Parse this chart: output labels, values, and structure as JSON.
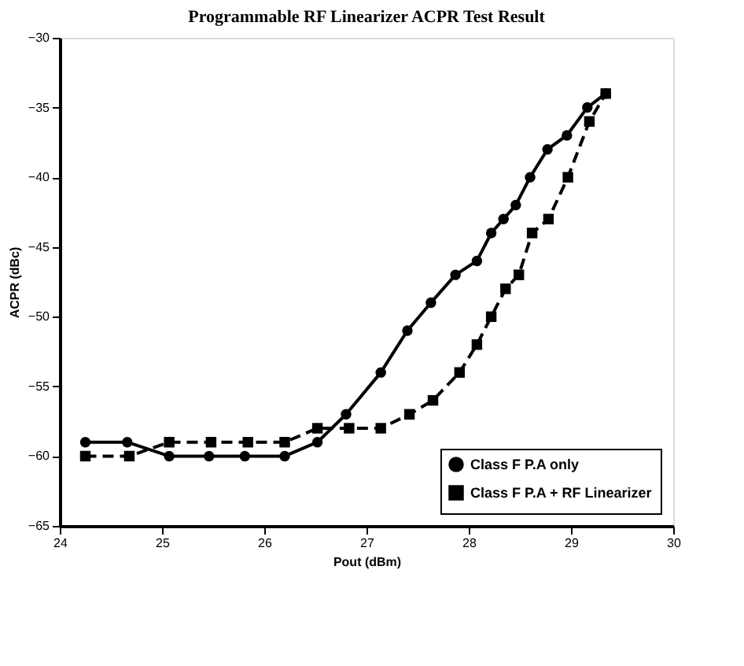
{
  "chart_data": {
    "type": "line",
    "title": "Programmable RF Linearizer ACPR Test Result",
    "xlabel": "Pout (dBm)",
    "ylabel": "ACPR (dBc)",
    "xlim": [
      24,
      30
    ],
    "xticks": [
      24,
      25,
      26,
      27,
      28,
      29,
      30
    ],
    "ylim": [
      -65,
      -30
    ],
    "yticks": [
      -65,
      -60,
      -55,
      -50,
      -45,
      -40,
      -35,
      -30
    ],
    "grid": false,
    "legend": "bottom right",
    "series": [
      {
        "name": "Class F P.A only",
        "color": "#000000",
        "marker": "circle",
        "line_style": "solid",
        "x": [
          24.25,
          24.66,
          25.07,
          25.46,
          25.81,
          26.2,
          26.52,
          26.8,
          27.14,
          27.4,
          27.63,
          27.87,
          28.08,
          28.22,
          28.34,
          28.46,
          28.6,
          28.77,
          28.96,
          29.16,
          29.34
        ],
        "values": [
          -59,
          -59,
          -60,
          -60,
          -60,
          -60,
          -59,
          -57,
          -54,
          -51,
          -49,
          -47,
          -46,
          -44,
          -43,
          -42,
          -40,
          -38,
          -37,
          -35,
          -34
        ]
      },
      {
        "name": "Class F P.A + RF Linearizer",
        "color": "#000000",
        "marker": "square",
        "line_style": "dashed",
        "x": [
          24.25,
          24.68,
          25.07,
          25.48,
          25.84,
          26.2,
          26.52,
          26.83,
          27.14,
          27.42,
          27.65,
          27.91,
          28.08,
          28.22,
          28.36,
          28.49,
          28.62,
          28.78,
          28.97,
          29.18,
          29.34
        ],
        "values": [
          -60,
          -60,
          -59,
          -59,
          -59,
          -59,
          -58,
          -58,
          -58,
          -57,
          -56,
          -54,
          -52,
          -50,
          -48,
          -47,
          -44,
          -43,
          -40,
          -36,
          -34
        ]
      }
    ]
  }
}
